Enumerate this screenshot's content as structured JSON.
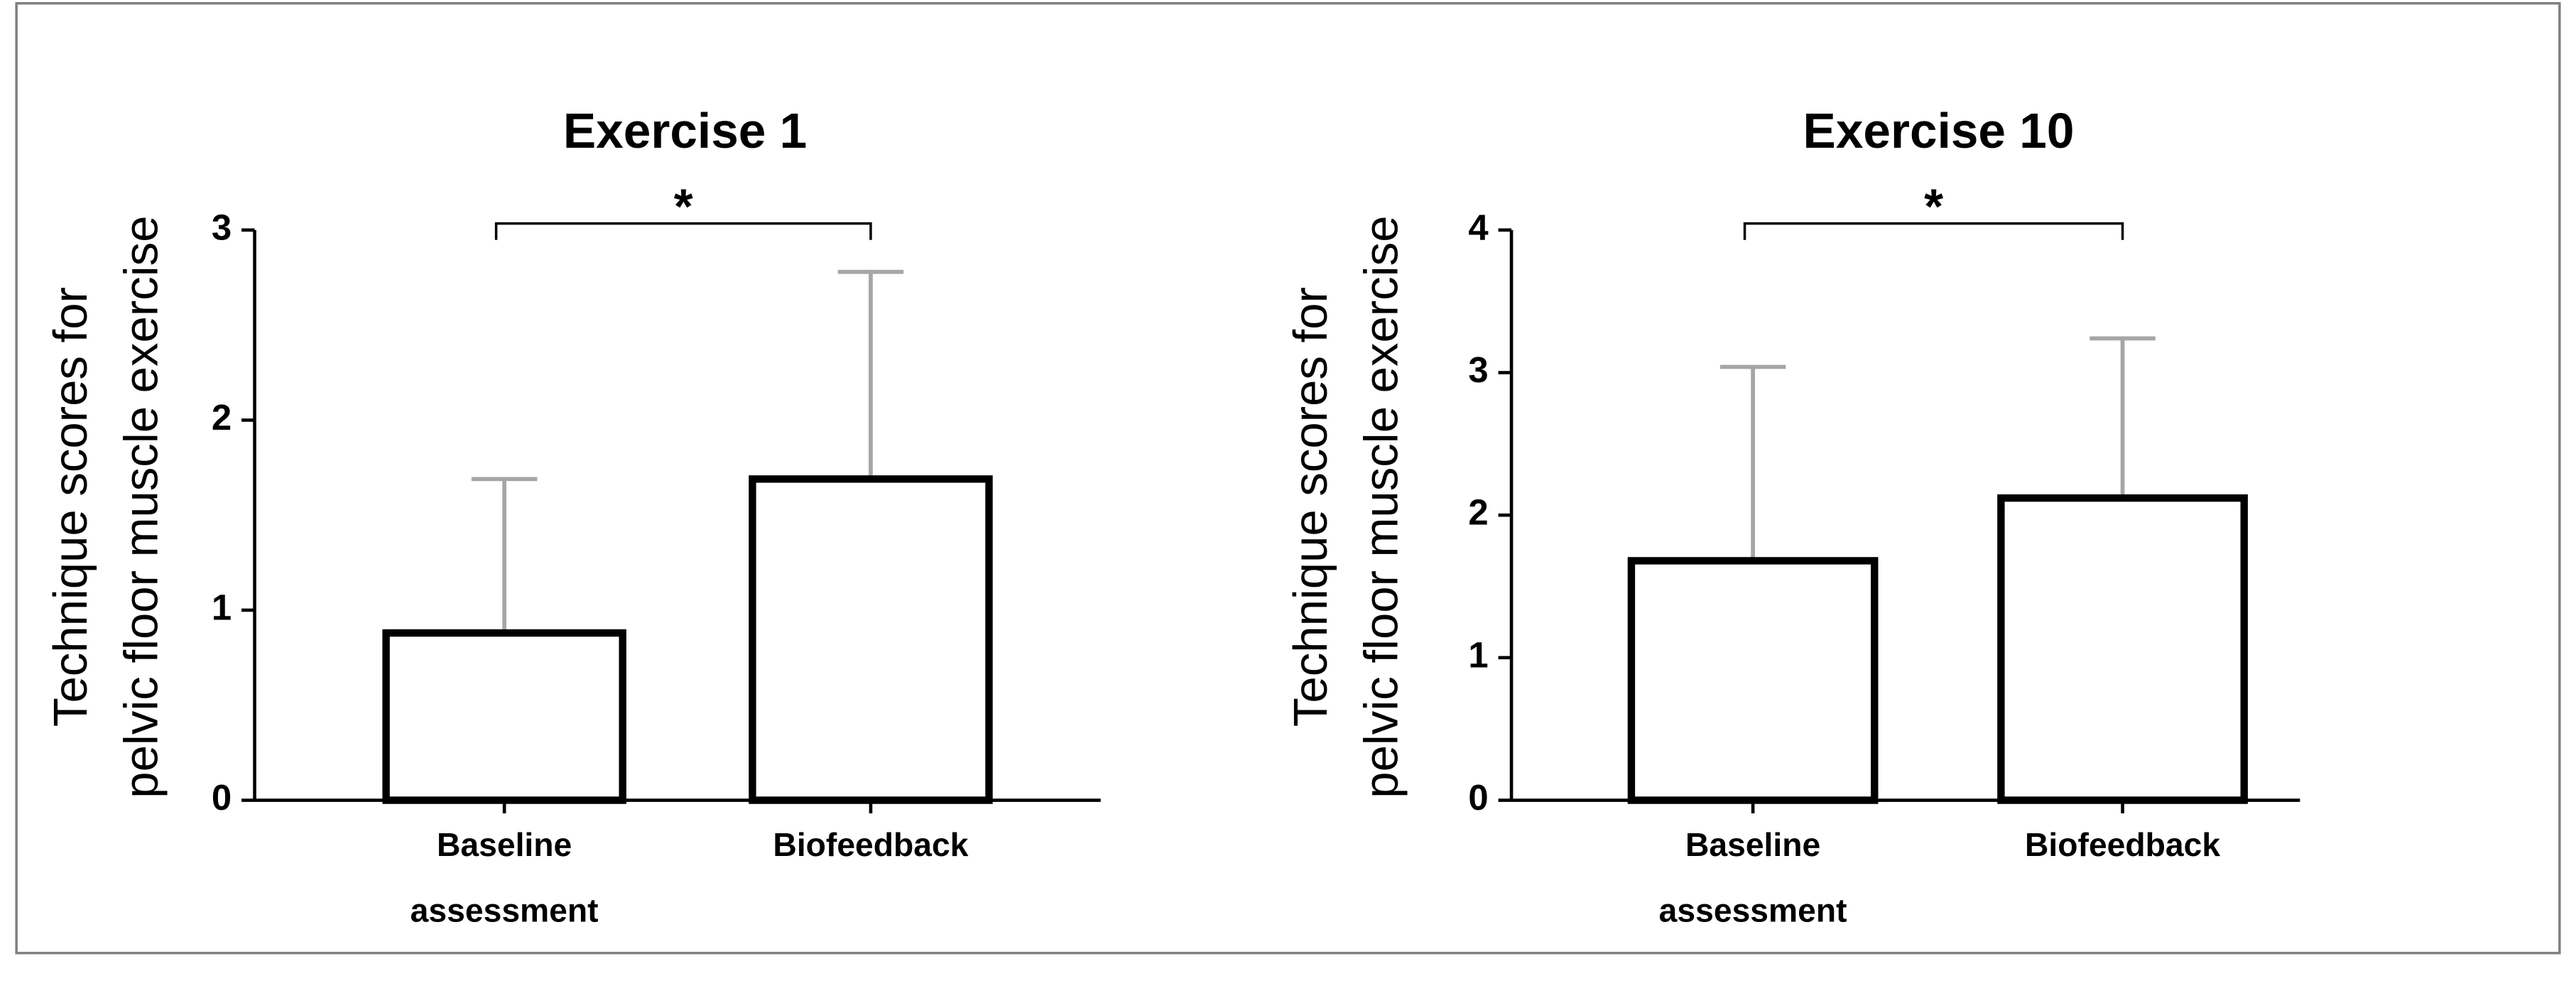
{
  "chart_data": [
    {
      "type": "bar",
      "title": "Exercise 1",
      "ylabel": [
        "Technique scores for",
        "pelvic floor muscle   exercise"
      ],
      "categories": [
        "Baseline assessment",
        "Biofeedback"
      ],
      "values": [
        0.88,
        1.69
      ],
      "errors": [
        0.81,
        1.09
      ],
      "color": "#ffffff",
      "edge_color": "#000000",
      "error_color": "#a6a6a6",
      "ylim": [
        0,
        3
      ],
      "yticks": [
        0,
        1,
        2,
        3
      ],
      "annotation": "*"
    },
    {
      "type": "bar",
      "title": "Exercise 10",
      "ylabel": [
        "Technique scores for",
        "pelvic floor muscle   exercise"
      ],
      "categories": [
        "Baseline assessment",
        "Biofeedback"
      ],
      "values": [
        1.68,
        2.12
      ],
      "errors": [
        1.36,
        1.12
      ],
      "color": "#ffffff",
      "edge_color": "#000000",
      "error_color": "#a6a6a6",
      "ylim": [
        0,
        4
      ],
      "yticks": [
        0,
        1,
        2,
        3,
        4
      ],
      "annotation": "*"
    }
  ]
}
